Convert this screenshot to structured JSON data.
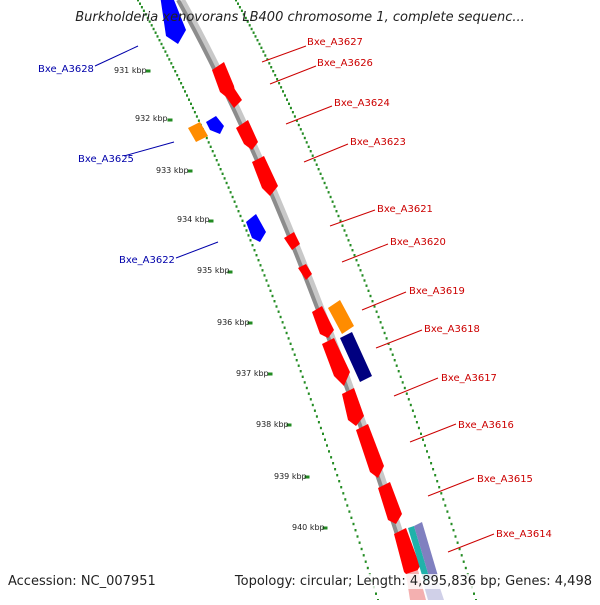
{
  "title": "Burkholderia xenovorans LB400 chromosome 1, complete sequenc...",
  "footer": {
    "accession": "Accession: NC_007951",
    "summary": "Topology: circular; Length: 4,895,836 bp; Genes: 4,498"
  },
  "colors": {
    "backbone": "#8c8c8c",
    "ticks": "#228b22",
    "forward_gene": "#ff0000",
    "reverse_gene": "#0000ff",
    "orange_gene": "#ff8c00",
    "navy_gene": "#000080",
    "forward_label": "#cc0000",
    "reverse_label": "#0000aa"
  },
  "kbp_labels": [
    "931 kbp",
    "932 kbp",
    "933 kbp",
    "934 kbp",
    "935 kbp",
    "936 kbp",
    "937 kbp",
    "938 kbp",
    "939 kbp",
    "940 kbp"
  ],
  "labels_forward": [
    "Bxe_A3627",
    "Bxe_A3626",
    "Bxe_A3624",
    "Bxe_A3623",
    "Bxe_A3621",
    "Bxe_A3620",
    "Bxe_A3619",
    "Bxe_A3618",
    "Bxe_A3617",
    "Bxe_A3616",
    "Bxe_A3615",
    "Bxe_A3614"
  ],
  "labels_reverse": [
    "Bxe_A3628",
    "Bxe_A3625",
    "Bxe_A3622"
  ]
}
